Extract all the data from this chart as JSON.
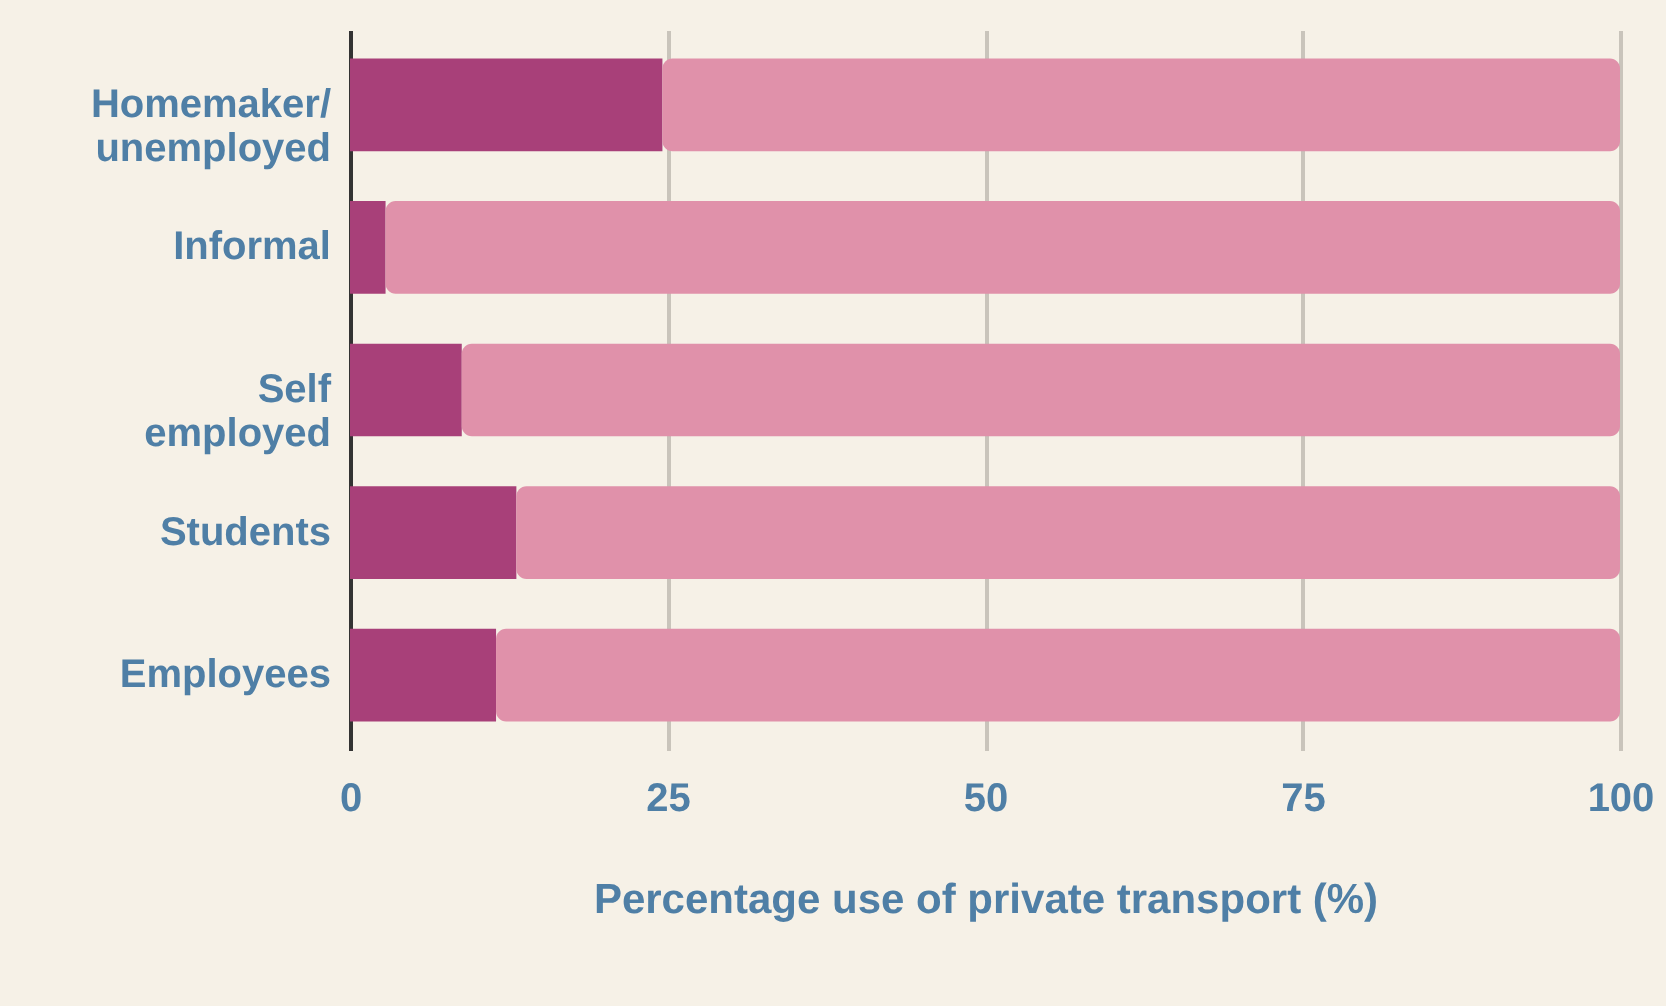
{
  "chart_data": {
    "type": "bar",
    "orientation": "horizontal",
    "stacked": true,
    "xlabel": "Percentage use of private transport (%)",
    "categories": [
      "Homemaker/unemployed",
      "Informal",
      "Self employed",
      "Students",
      "Employees"
    ],
    "series": [
      {
        "color": "#a84079",
        "values": [
          24.6,
          2.8,
          8.8,
          13.1,
          11.5
        ]
      },
      {
        "color": "#e091aa",
        "values": [
          75.4,
          97.2,
          91.2,
          86.9,
          88.5
        ]
      }
    ],
    "xlim": [
      0,
      100
    ],
    "xticks": [
      0,
      25,
      50,
      75,
      100
    ],
    "grid": "x"
  }
}
